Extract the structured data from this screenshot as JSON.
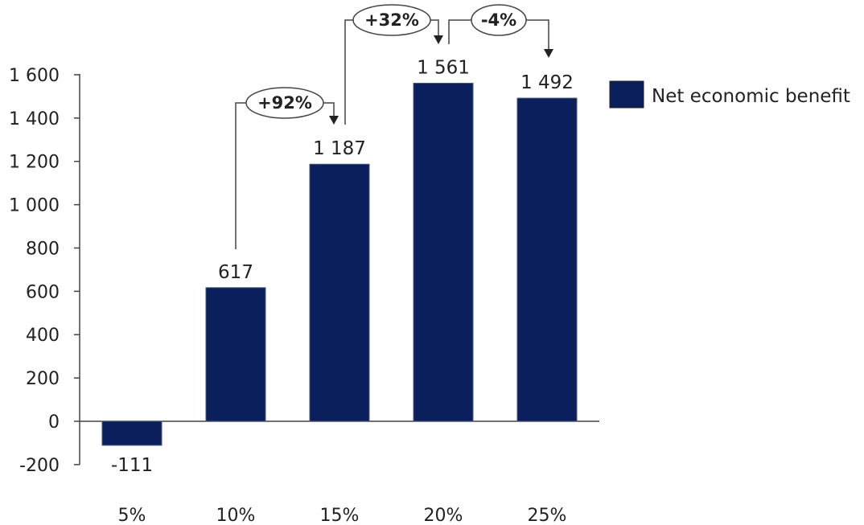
{
  "chart_data": {
    "type": "bar",
    "categories": [
      "5%",
      "10%",
      "15%",
      "20%",
      "25%"
    ],
    "series": [
      {
        "name": "Net economic benefit",
        "values": [
          -111,
          617,
          1187,
          1561,
          1492
        ]
      }
    ],
    "data_labels": [
      "-111",
      "617",
      "1 187",
      "1 561",
      "1 492"
    ],
    "y_ticks": [
      -200,
      0,
      200,
      400,
      600,
      800,
      1000,
      1200,
      1400,
      1600
    ],
    "y_tick_labels": [
      "-200",
      "0",
      "200",
      "400",
      "600",
      "800",
      "1 000",
      "1 200",
      "1 400",
      "1 600"
    ],
    "ylim": [
      -200,
      1600
    ],
    "title": "",
    "xlabel": "",
    "ylabel": "",
    "grid": false,
    "legend": {
      "position": "right",
      "entries": [
        "Net economic benefit"
      ]
    },
    "annotations": [
      {
        "label": "+92%",
        "from": 1,
        "to": 2
      },
      {
        "label": "+32%",
        "from": 2,
        "to": 3
      },
      {
        "label": "-4%",
        "from": 3,
        "to": 4
      }
    ],
    "colors": {
      "bar": "#0a1f5c",
      "axis": "#444444",
      "text": "#222222"
    }
  }
}
